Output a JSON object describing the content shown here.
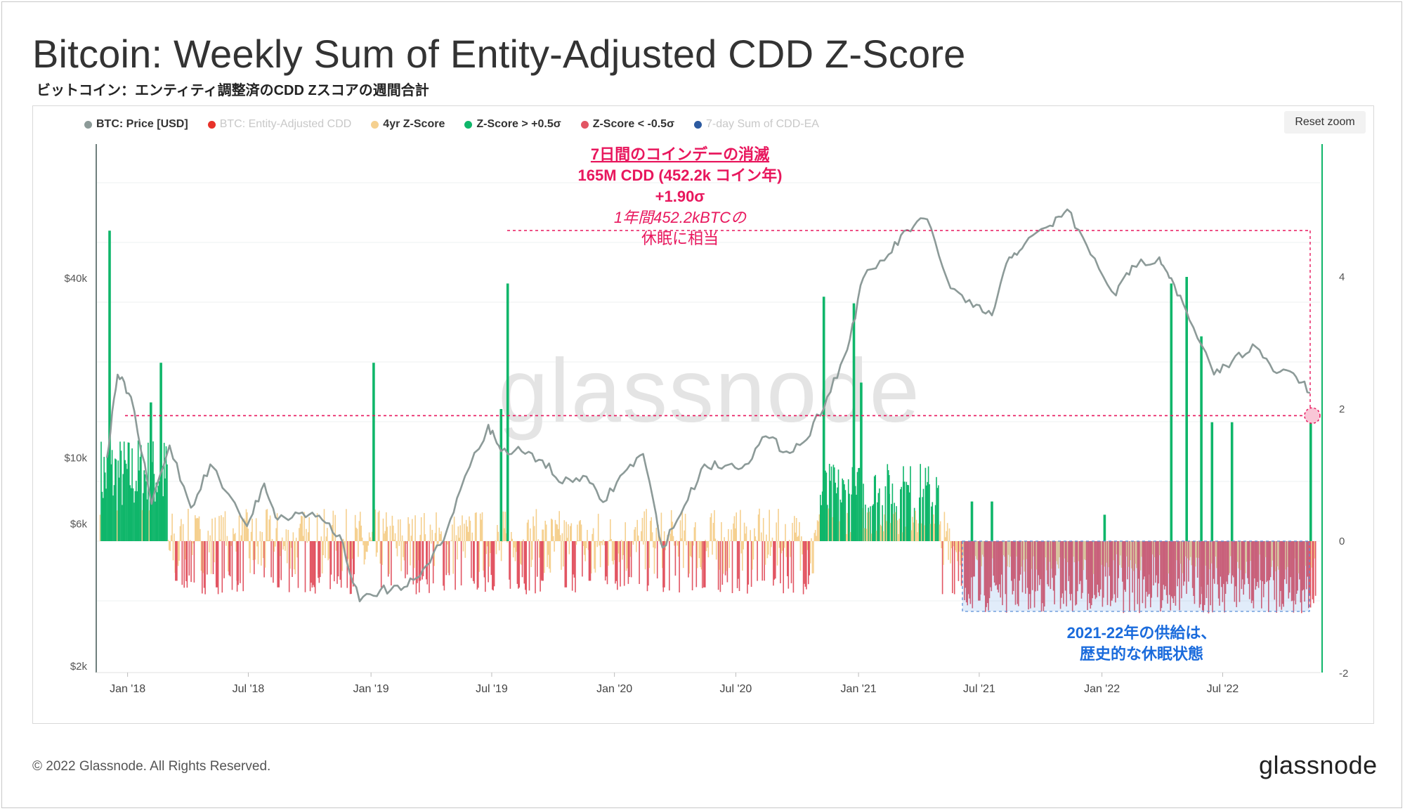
{
  "title": "Bitcoin: Weekly Sum of Entity-Adjusted CDD Z-Score",
  "subtitle": "ビットコイン：エンティティ調整済のCDD Zスコアの週間合計",
  "reset_zoom_label": "Reset zoom",
  "footer": "© 2022 Glassnode. All Rights Reserved.",
  "brand": "glassnode",
  "watermark": "glassnode",
  "colors": {
    "price": "#8c9a98",
    "cdd": "#e8322a",
    "zscore": "#f5d08f",
    "z_pos": "#0fb66a",
    "z_neg": "#e25563",
    "sum7": "#2c5aa0",
    "annotation": "#e8175d",
    "annotation_blue": "#1a6bdc"
  },
  "legend": [
    {
      "label": "BTC: Price [USD]",
      "color": "#8c9a98",
      "muted": false
    },
    {
      "label": "BTC: Entity-Adjusted CDD",
      "color": "#e8322a",
      "muted": true
    },
    {
      "label": "4yr Z-Score",
      "color": "#f5d08f",
      "muted": false
    },
    {
      "label": "Z-Score > +0.5σ",
      "color": "#0fb66a",
      "muted": false
    },
    {
      "label": "Z-Score < -0.5σ",
      "color": "#e25563",
      "muted": false
    },
    {
      "label": "7-day Sum of CDD-EA",
      "color": "#2c5aa0",
      "muted": true
    }
  ],
  "annotations": {
    "top": {
      "line1": "7日間のコインデーの消滅",
      "line2": "165M CDD (452.2k コイン年)",
      "line3": "+1.90σ",
      "line4": "1年間452.2kBTCの",
      "line5": "休眠に相当"
    },
    "bottom": {
      "line1": "2021-22年の供給は、",
      "line2": "歴史的な休眠状態"
    }
  },
  "chart_data": {
    "type": "bar",
    "x_ticks": [
      "Jan '18",
      "Jul '18",
      "Jan '19",
      "Jul '19",
      "Jan '20",
      "Jul '20",
      "Jan '21",
      "Jul '21",
      "Jan '22",
      "Jul '22"
    ],
    "left_axis": {
      "label": "",
      "ticks": [
        "$2k",
        "$6k",
        "$10k",
        "$40k"
      ],
      "tick_values": [
        2000,
        6000,
        10000,
        40000
      ],
      "scale": "log"
    },
    "right_axis": {
      "label": "",
      "ticks": [
        "-2",
        "0",
        "2",
        "4"
      ],
      "tick_values": [
        -2,
        0,
        2,
        4
      ],
      "ylim": [
        -2,
        6
      ]
    },
    "threshold_marker": {
      "value": 1.9,
      "label": "+1.90σ"
    },
    "series": [
      {
        "name": "BTC: Price [USD]",
        "type": "line",
        "axis": "left",
        "x": [
          "2017-12-01",
          "2017-12-17",
          "2018-01-06",
          "2018-02-06",
          "2018-03-05",
          "2018-04-06",
          "2018-05-05",
          "2018-06-29",
          "2018-07-25",
          "2018-08-14",
          "2018-09-15",
          "2018-10-15",
          "2018-11-15",
          "2018-12-15",
          "2019-01-15",
          "2019-02-15",
          "2019-03-15",
          "2019-04-15",
          "2019-05-15",
          "2019-06-26",
          "2019-07-15",
          "2019-08-15",
          "2019-09-15",
          "2019-10-15",
          "2019-11-15",
          "2019-12-15",
          "2020-01-15",
          "2020-02-13",
          "2020-03-13",
          "2020-04-15",
          "2020-05-15",
          "2020-06-15",
          "2020-07-15",
          "2020-08-15",
          "2020-09-15",
          "2020-10-15",
          "2020-11-15",
          "2020-12-15",
          "2021-01-08",
          "2021-02-15",
          "2021-03-15",
          "2021-04-14",
          "2021-05-19",
          "2021-06-22",
          "2021-07-20",
          "2021-08-15",
          "2021-09-07",
          "2021-10-15",
          "2021-11-10",
          "2021-12-15",
          "2022-01-22",
          "2022-02-15",
          "2022-03-28",
          "2022-04-15",
          "2022-05-12",
          "2022-06-18",
          "2022-07-15",
          "2022-08-15",
          "2022-09-15",
          "2022-10-15",
          "2022-11-09"
        ],
        "values": [
          10000,
          19000,
          16000,
          7000,
          11000,
          6800,
          9500,
          5900,
          8200,
          6200,
          6500,
          6400,
          5500,
          3300,
          3600,
          3600,
          4000,
          5100,
          7800,
          12900,
          10500,
          10500,
          9800,
          8200,
          8700,
          7100,
          8900,
          10300,
          5000,
          6900,
          9500,
          9400,
          9500,
          11800,
          10500,
          11500,
          16000,
          23000,
          40000,
          48000,
          58000,
          63000,
          37000,
          32000,
          30000,
          47000,
          52000,
          60000,
          68000,
          48000,
          35000,
          44000,
          47000,
          40000,
          29000,
          19000,
          21000,
          24000,
          19500,
          19200,
          16500
        ]
      },
      {
        "name": "Z-Score > +0.5σ",
        "type": "bar",
        "axis": "right",
        "x": [
          "2017-12-05",
          "2018-02-05",
          "2018-02-20",
          "2019-01-05",
          "2019-07-15",
          "2019-07-25",
          "2020-11-10",
          "2020-12-25",
          "2021-01-05",
          "2021-02-15",
          "2021-03-10",
          "2021-06-20",
          "2021-07-20",
          "2022-01-05",
          "2022-04-15",
          "2022-05-08",
          "2022-05-30",
          "2022-06-15",
          "2022-07-15",
          "2022-11-10"
        ],
        "values": [
          4.7,
          2.1,
          2.7,
          2.7,
          2.0,
          3.9,
          3.7,
          3.6,
          2.4,
          1.0,
          0.9,
          0.6,
          0.6,
          0.4,
          3.9,
          4.0,
          3.1,
          1.8,
          1.8,
          1.9
        ]
      },
      {
        "name": "Z-Score < -0.5σ",
        "type": "bar",
        "axis": "right",
        "x": [
          "2018-03-15",
          "2018-05-15",
          "2018-06-15",
          "2018-08-15",
          "2018-10-15",
          "2019-03-15",
          "2019-09-15",
          "2019-10-20",
          "2019-11-25",
          "2020-03-15",
          "2020-05-15",
          "2021-07-01",
          "2021-09-15",
          "2021-11-15",
          "2022-01-15",
          "2022-03-15",
          "2022-06-01",
          "2022-08-15",
          "2022-10-15"
        ],
        "values": [
          -0.6,
          -0.7,
          -0.6,
          -0.7,
          -0.5,
          -0.6,
          -0.6,
          -0.7,
          -0.6,
          -0.7,
          -0.7,
          -0.9,
          -0.8,
          -0.8,
          -0.9,
          -0.8,
          -0.8,
          -0.9,
          -0.9
        ]
      }
    ],
    "legend_placement": "top-left",
    "grid": true
  }
}
